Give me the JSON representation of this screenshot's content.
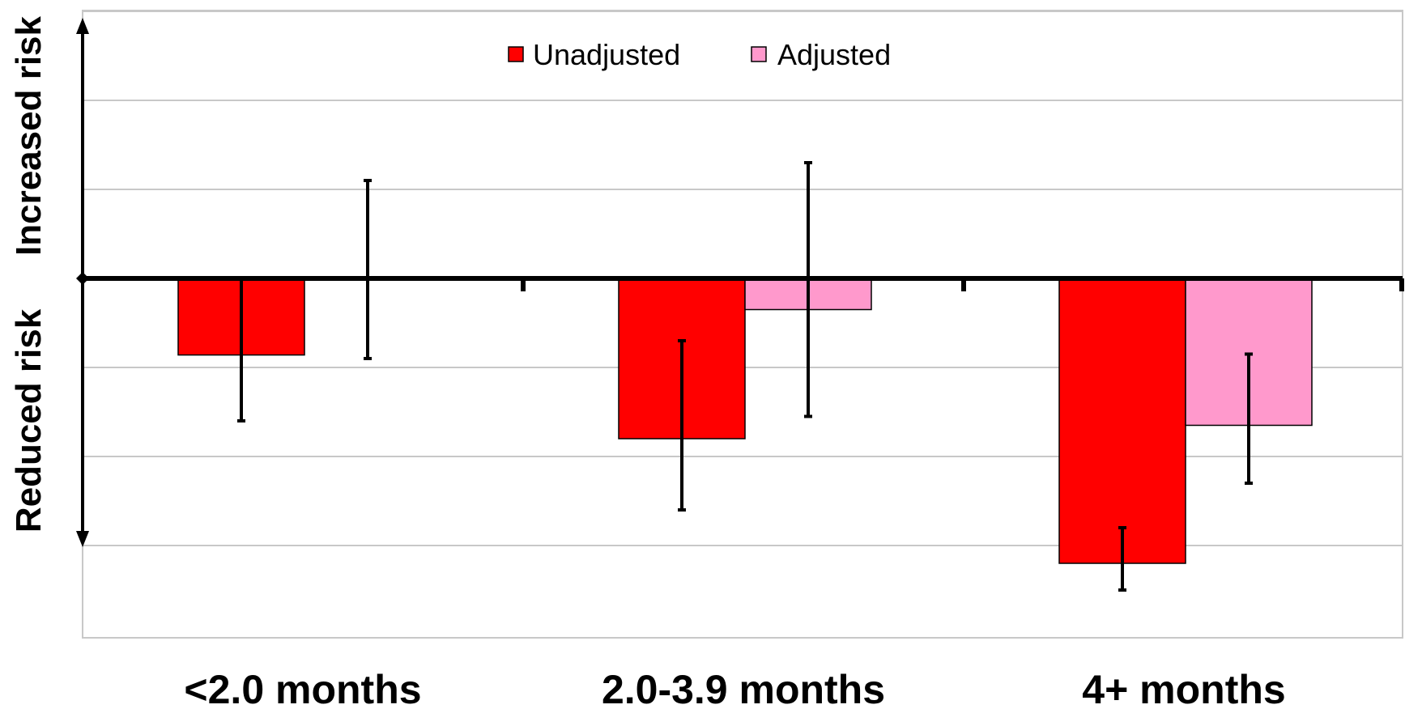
{
  "chart_data": {
    "type": "bar",
    "categories": [
      "<2.0 months",
      "2.0-3.9 months",
      "4+ months"
    ],
    "series": [
      {
        "name": "Unadjusted",
        "color": "#ff0000",
        "values": [
          -0.86,
          -1.8,
          -3.2
        ],
        "error_low": [
          -1.6,
          -2.6,
          -3.5
        ],
        "error_high": [
          0.0,
          -0.7,
          -2.8
        ]
      },
      {
        "name": "Adjusted",
        "color": "#ff99cc",
        "values": [
          0.0,
          -0.35,
          -1.65
        ],
        "error_low": [
          -0.9,
          -1.55,
          -2.3
        ],
        "error_high": [
          1.1,
          1.3,
          -0.85
        ]
      }
    ],
    "ylim": [
      -4.0,
      3.0
    ],
    "gridlines": [
      3,
      2,
      1,
      -1,
      -2,
      -3
    ],
    "grid": true,
    "legend_position": "top-center",
    "y_annotations": {
      "top": "Increased risk",
      "bottom": "Reduced risk"
    },
    "axis_color": "#000000"
  }
}
